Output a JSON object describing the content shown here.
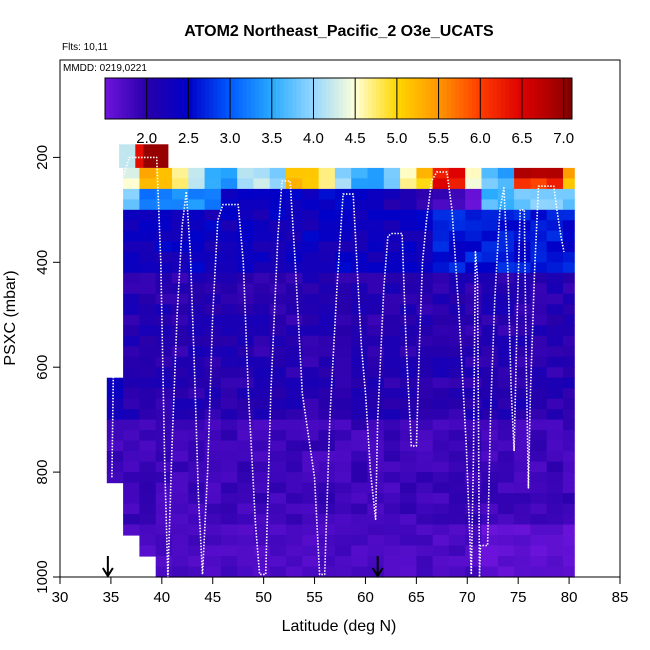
{
  "chart_data": {
    "type": "heatmap",
    "title": "ATOM2 Northeast_Pacific_2 O3e_UCATS",
    "flights_label": "Flts: 10,11",
    "mmdd_label": "MMDD: 0219,0221",
    "xlabel": "Latitude (deg N)",
    "ylabel": "PSXC (mbar)",
    "xlim": [
      30,
      85
    ],
    "ylim": [
      1000,
      0
    ],
    "x_ticks": [
      "30",
      "35",
      "40",
      "45",
      "50",
      "55",
      "60",
      "65",
      "70",
      "75",
      "80",
      "85"
    ],
    "y_ticks": [
      "200",
      "400",
      "600",
      "800",
      "1000"
    ],
    "colorbar": {
      "min": 1.5,
      "max": 7.1,
      "ticks": [
        "2.0",
        "2.5",
        "3.0",
        "3.5",
        "4.0",
        "4.5",
        "5.0",
        "5.5",
        "6.0",
        "6.5",
        "7.0"
      ]
    },
    "arrows_lat": [
      34.7,
      61.2
    ],
    "profile": [
      [
        35.1,
        810
      ],
      [
        35.3,
        520
      ],
      [
        35.5,
        300
      ],
      [
        35.7,
        230
      ],
      [
        36.0,
        240
      ],
      [
        36.3,
        232
      ],
      [
        36.8,
        200
      ],
      [
        38.0,
        200
      ],
      [
        39.5,
        200
      ],
      [
        39.9,
        400
      ],
      [
        40.3,
        800
      ],
      [
        40.6,
        1000
      ],
      [
        41.0,
        750
      ],
      [
        41.5,
        500
      ],
      [
        42.0,
        330
      ],
      [
        42.4,
        265
      ],
      [
        42.8,
        380
      ],
      [
        43.2,
        600
      ],
      [
        43.6,
        850
      ],
      [
        44.0,
        995
      ],
      [
        44.5,
        800
      ],
      [
        45.0,
        500
      ],
      [
        45.5,
        320
      ],
      [
        46.0,
        290
      ],
      [
        47.5,
        290
      ],
      [
        48.0,
        400
      ],
      [
        48.5,
        650
      ],
      [
        49.2,
        900
      ],
      [
        49.6,
        995
      ],
      [
        50.2,
        995
      ],
      [
        50.7,
        650
      ],
      [
        51.4,
        350
      ],
      [
        51.8,
        245
      ],
      [
        52.6,
        245
      ],
      [
        53.1,
        400
      ],
      [
        53.8,
        650
      ],
      [
        55.0,
        810
      ],
      [
        55.5,
        995
      ],
      [
        56.0,
        995
      ],
      [
        56.5,
        700
      ],
      [
        57.2,
        450
      ],
      [
        57.8,
        270
      ],
      [
        58.8,
        270
      ],
      [
        59.1,
        380
      ],
      [
        59.6,
        560
      ],
      [
        60.0,
        650
      ],
      [
        60.5,
        800
      ],
      [
        61.0,
        890
      ],
      [
        61.2,
        700
      ],
      [
        61.8,
        450
      ],
      [
        62.2,
        350
      ],
      [
        62.6,
        345
      ],
      [
        63.6,
        345
      ],
      [
        64.0,
        560
      ],
      [
        64.5,
        750
      ],
      [
        65.0,
        750
      ],
      [
        65.3,
        560
      ],
      [
        65.6,
        400
      ],
      [
        66.0,
        320
      ],
      [
        66.5,
        245
      ],
      [
        67.0,
        228
      ],
      [
        67.5,
        228
      ],
      [
        68.0,
        228
      ],
      [
        68.5,
        300
      ],
      [
        69.2,
        500
      ],
      [
        69.9,
        750
      ],
      [
        70.4,
        995
      ],
      [
        70.6,
        780
      ],
      [
        70.8,
        380
      ],
      [
        71.0,
        430
      ],
      [
        71.2,
        1000
      ],
      [
        71.3,
        940
      ],
      [
        72.0,
        940
      ],
      [
        72.3,
        680
      ],
      [
        72.7,
        470
      ],
      [
        73.2,
        300
      ],
      [
        73.6,
        258
      ],
      [
        74.0,
        420
      ],
      [
        74.3,
        640
      ],
      [
        74.6,
        760
      ],
      [
        74.9,
        500
      ],
      [
        75.2,
        300
      ],
      [
        75.6,
        300
      ],
      [
        75.8,
        600
      ],
      [
        76.0,
        830
      ],
      [
        76.2,
        650
      ],
      [
        76.6,
        420
      ],
      [
        77.0,
        255
      ],
      [
        78.5,
        255
      ],
      [
        78.8,
        300
      ],
      [
        79.2,
        350
      ],
      [
        79.5,
        380
      ]
    ]
  }
}
